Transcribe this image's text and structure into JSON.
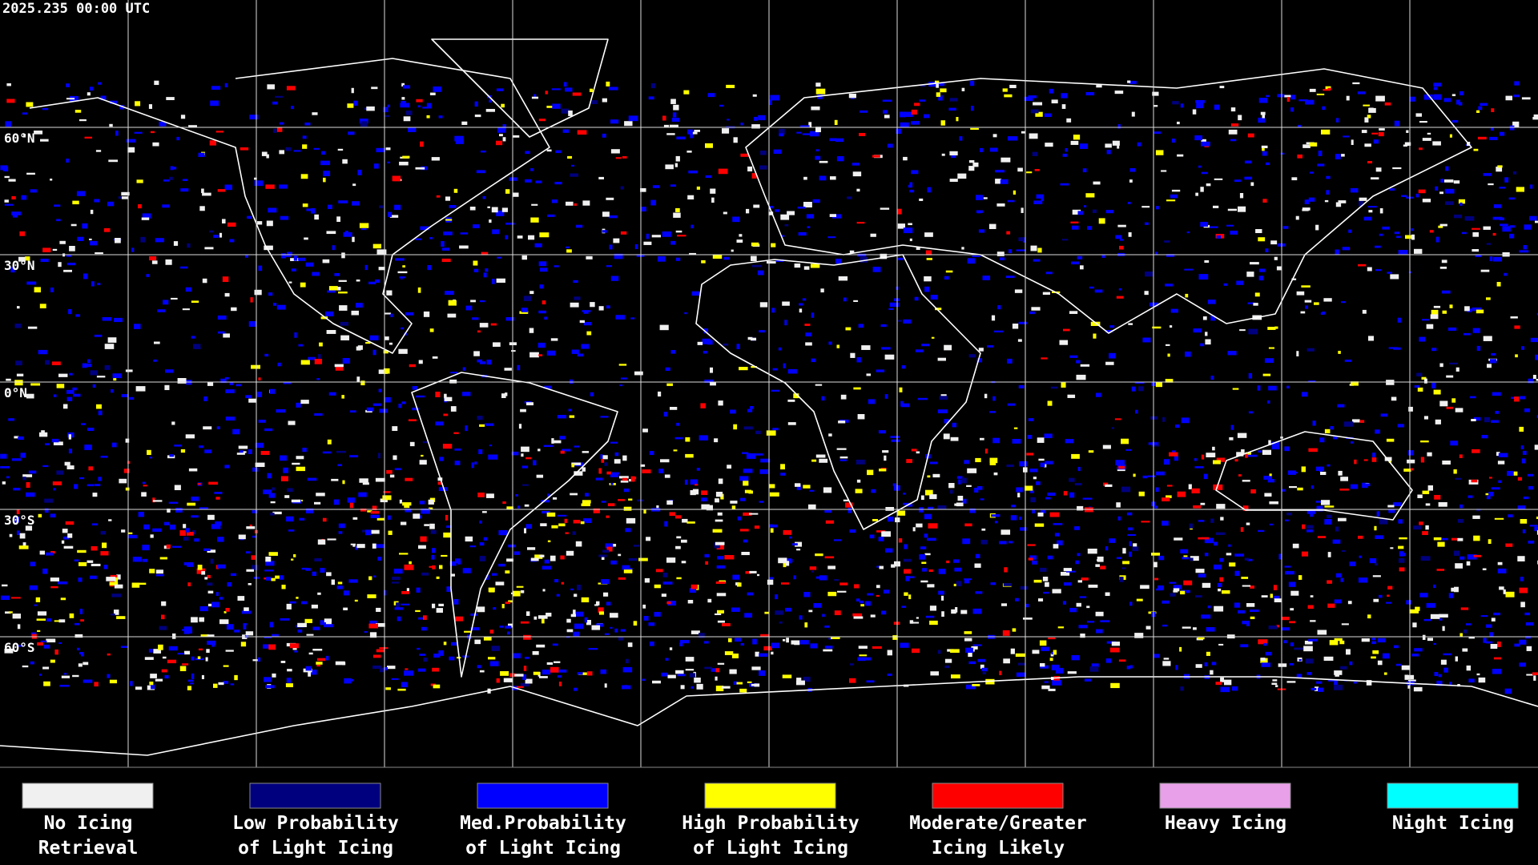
{
  "header": {
    "timestamp": "2025.235 00:00 UTC"
  },
  "latitudes": [
    {
      "value": 60,
      "label": "60°N"
    },
    {
      "value": 30,
      "label": "30°N"
    },
    {
      "value": 0,
      "label": "0°N"
    },
    {
      "value": -30,
      "label": "30°S"
    },
    {
      "value": -60,
      "label": "60°S"
    }
  ],
  "legend": [
    {
      "color": "#f0f0f0",
      "lines": [
        "No Icing",
        "Retrieval"
      ]
    },
    {
      "color": "#00007f",
      "lines": [
        "Low Probability",
        "of Light Icing"
      ]
    },
    {
      "color": "#0000ff",
      "lines": [
        "Med.Probability",
        "of Light Icing"
      ]
    },
    {
      "color": "#ffff00",
      "lines": [
        "High Probability",
        "of Light Icing"
      ]
    },
    {
      "color": "#ff0000",
      "lines": [
        "Moderate/Greater",
        "Icing Likely"
      ]
    },
    {
      "color": "#e8a0e8",
      "lines": [
        "Heavy Icing"
      ]
    },
    {
      "color": "#00ffff",
      "lines": [
        "Night Icing"
      ]
    }
  ]
}
